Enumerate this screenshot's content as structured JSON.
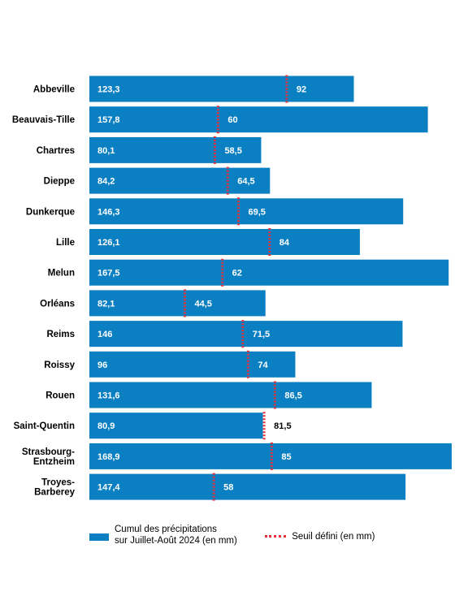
{
  "chart_data": {
    "type": "bar",
    "orientation": "horizontal",
    "categories": [
      [
        "Abbeville"
      ],
      [
        "Beauvais-Tille"
      ],
      [
        "Chartres"
      ],
      [
        "Dieppe"
      ],
      [
        "Dunkerque"
      ],
      [
        "Lille"
      ],
      [
        "Melun"
      ],
      [
        "Orléans"
      ],
      [
        "Reims"
      ],
      [
        "Roissy"
      ],
      [
        "Rouen"
      ],
      [
        "Saint-Quentin"
      ],
      [
        "Strasbourg-",
        "Entzheim"
      ],
      [
        "Troyes-",
        "Barberey"
      ]
    ],
    "series": [
      {
        "name": "Cumul des précipitations sur Juillet-Août 2024 (en mm)",
        "values": [
          123.3,
          157.8,
          80.1,
          84.2,
          146.3,
          126.1,
          167.5,
          82.1,
          146,
          96,
          131.6,
          80.9,
          168.9,
          147.4
        ],
        "labels": [
          "123,3",
          "157,8",
          "80,1",
          "84,2",
          "146,3",
          "126,1",
          "167,5",
          "82,1",
          "146",
          "96",
          "131,6",
          "80,9",
          "168,9",
          "147,4"
        ],
        "color": "#0a7fc2"
      },
      {
        "name": "Seuil défini (en mm)",
        "values": [
          92,
          60,
          58.5,
          64.5,
          69.5,
          84,
          62,
          44.5,
          71.5,
          74,
          86.5,
          81.5,
          85,
          58
        ],
        "labels": [
          "92",
          "60",
          "58,5",
          "64,5",
          "69,5",
          "84",
          "62",
          "44,5",
          "71,5",
          "74",
          "86,5",
          "81,5",
          "85",
          "58"
        ],
        "color": "#e8303a",
        "style": "dotted-marker"
      }
    ],
    "xlim": [
      0,
      170
    ],
    "grid": false,
    "legend_position": "bottom"
  },
  "legend": {
    "bar_label": [
      "Cumul des précipitations",
      "sur Juillet-Août 2024 (en mm)"
    ],
    "threshold_label": "Seuil défini (en mm)"
  }
}
